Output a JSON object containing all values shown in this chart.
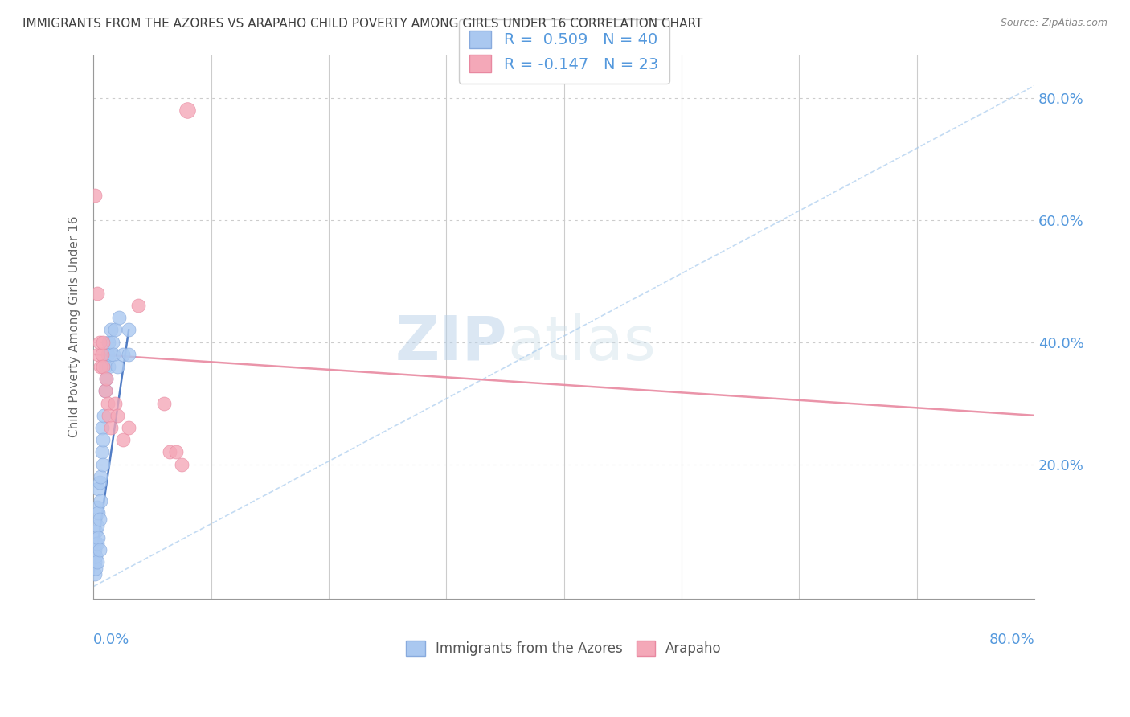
{
  "title": "IMMIGRANTS FROM THE AZORES VS ARAPAHO CHILD POVERTY AMONG GIRLS UNDER 16 CORRELATION CHART",
  "source": "Source: ZipAtlas.com",
  "ylabel": "Child Poverty Among Girls Under 16",
  "xlim": [
    0.0,
    0.8
  ],
  "ylim": [
    -0.02,
    0.87
  ],
  "watermark_zip": "ZIP",
  "watermark_atlas": "atlas",
  "legend_r1": "R =  0.509   N = 40",
  "legend_r2": "R = -0.147   N = 23",
  "series1_color": "#aac8f0",
  "series2_color": "#f4a8b8",
  "series1_edge_color": "#88aadd",
  "series2_edge_color": "#e888a0",
  "series1_line_color": "#88aadd",
  "series2_line_color": "#e888a0",
  "title_color": "#404040",
  "label_color": "#5599dd",
  "blue_scatter": [
    [
      0.001,
      0.02
    ],
    [
      0.001,
      0.04
    ],
    [
      0.001,
      0.06
    ],
    [
      0.002,
      0.03
    ],
    [
      0.002,
      0.05
    ],
    [
      0.002,
      0.07
    ],
    [
      0.002,
      0.09
    ],
    [
      0.003,
      0.04
    ],
    [
      0.003,
      0.07
    ],
    [
      0.003,
      0.1
    ],
    [
      0.003,
      0.13
    ],
    [
      0.004,
      0.08
    ],
    [
      0.004,
      0.12
    ],
    [
      0.004,
      0.16
    ],
    [
      0.005,
      0.06
    ],
    [
      0.005,
      0.11
    ],
    [
      0.005,
      0.17
    ],
    [
      0.006,
      0.14
    ],
    [
      0.006,
      0.18
    ],
    [
      0.007,
      0.22
    ],
    [
      0.007,
      0.26
    ],
    [
      0.008,
      0.2
    ],
    [
      0.008,
      0.24
    ],
    [
      0.009,
      0.28
    ],
    [
      0.01,
      0.32
    ],
    [
      0.01,
      0.36
    ],
    [
      0.011,
      0.34
    ],
    [
      0.012,
      0.38
    ],
    [
      0.013,
      0.36
    ],
    [
      0.013,
      0.4
    ],
    [
      0.014,
      0.38
    ],
    [
      0.015,
      0.42
    ],
    [
      0.016,
      0.4
    ],
    [
      0.017,
      0.38
    ],
    [
      0.018,
      0.42
    ],
    [
      0.02,
      0.36
    ],
    [
      0.022,
      0.44
    ],
    [
      0.025,
      0.38
    ],
    [
      0.03,
      0.38
    ],
    [
      0.03,
      0.42
    ]
  ],
  "pink_scatter": [
    [
      0.001,
      0.64
    ],
    [
      0.003,
      0.48
    ],
    [
      0.004,
      0.38
    ],
    [
      0.005,
      0.4
    ],
    [
      0.006,
      0.36
    ],
    [
      0.007,
      0.38
    ],
    [
      0.008,
      0.4
    ],
    [
      0.008,
      0.36
    ],
    [
      0.01,
      0.32
    ],
    [
      0.011,
      0.34
    ],
    [
      0.012,
      0.3
    ],
    [
      0.013,
      0.28
    ],
    [
      0.015,
      0.26
    ],
    [
      0.018,
      0.3
    ],
    [
      0.02,
      0.28
    ],
    [
      0.025,
      0.24
    ],
    [
      0.03,
      0.26
    ],
    [
      0.038,
      0.46
    ],
    [
      0.06,
      0.3
    ],
    [
      0.065,
      0.22
    ],
    [
      0.07,
      0.22
    ],
    [
      0.075,
      0.2
    ],
    [
      0.08,
      0.78
    ]
  ],
  "blue_line_x": [
    0.0,
    0.8
  ],
  "blue_line_y": [
    0.0,
    0.82
  ],
  "pink_line_x": [
    0.0,
    0.8
  ],
  "pink_line_y": [
    0.38,
    0.28
  ]
}
